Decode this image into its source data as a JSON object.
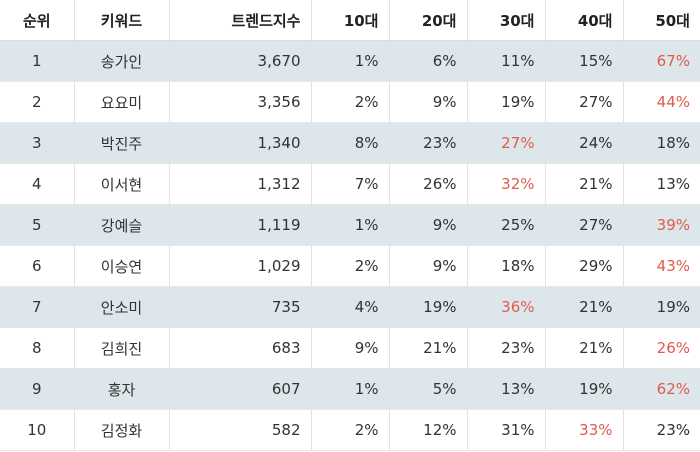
{
  "table": {
    "headers": [
      "순위",
      "키워드",
      "트렌드지수",
      "10대",
      "20대",
      "30대",
      "40대",
      "50대"
    ],
    "rows": [
      {
        "rank": "1",
        "keyword": "송가인",
        "trend": "3,670",
        "ages": [
          "1%",
          "6%",
          "11%",
          "15%",
          "67%"
        ],
        "highlight": 4
      },
      {
        "rank": "2",
        "keyword": "요요미",
        "trend": "3,356",
        "ages": [
          "2%",
          "9%",
          "19%",
          "27%",
          "44%"
        ],
        "highlight": 4
      },
      {
        "rank": "3",
        "keyword": "박진주",
        "trend": "1,340",
        "ages": [
          "8%",
          "23%",
          "27%",
          "24%",
          "18%"
        ],
        "highlight": 2
      },
      {
        "rank": "4",
        "keyword": "이서현",
        "trend": "1,312",
        "ages": [
          "7%",
          "26%",
          "32%",
          "21%",
          "13%"
        ],
        "highlight": 2
      },
      {
        "rank": "5",
        "keyword": "강예슬",
        "trend": "1,119",
        "ages": [
          "1%",
          "9%",
          "25%",
          "27%",
          "39%"
        ],
        "highlight": 4
      },
      {
        "rank": "6",
        "keyword": "이승연",
        "trend": "1,029",
        "ages": [
          "2%",
          "9%",
          "18%",
          "29%",
          "43%"
        ],
        "highlight": 4
      },
      {
        "rank": "7",
        "keyword": "안소미",
        "trend": "735",
        "ages": [
          "4%",
          "19%",
          "36%",
          "21%",
          "19%"
        ],
        "highlight": 2
      },
      {
        "rank": "8",
        "keyword": "김희진",
        "trend": "683",
        "ages": [
          "9%",
          "21%",
          "23%",
          "21%",
          "26%"
        ],
        "highlight": 4
      },
      {
        "rank": "9",
        "keyword": "홍자",
        "trend": "607",
        "ages": [
          "1%",
          "5%",
          "13%",
          "19%",
          "62%"
        ],
        "highlight": 4
      },
      {
        "rank": "10",
        "keyword": "김정화",
        "trend": "582",
        "ages": [
          "2%",
          "12%",
          "31%",
          "33%",
          "23%"
        ],
        "highlight": 3
      }
    ]
  },
  "colors": {
    "stripe": "#dde6ea",
    "highlight": "#e05a4e"
  }
}
